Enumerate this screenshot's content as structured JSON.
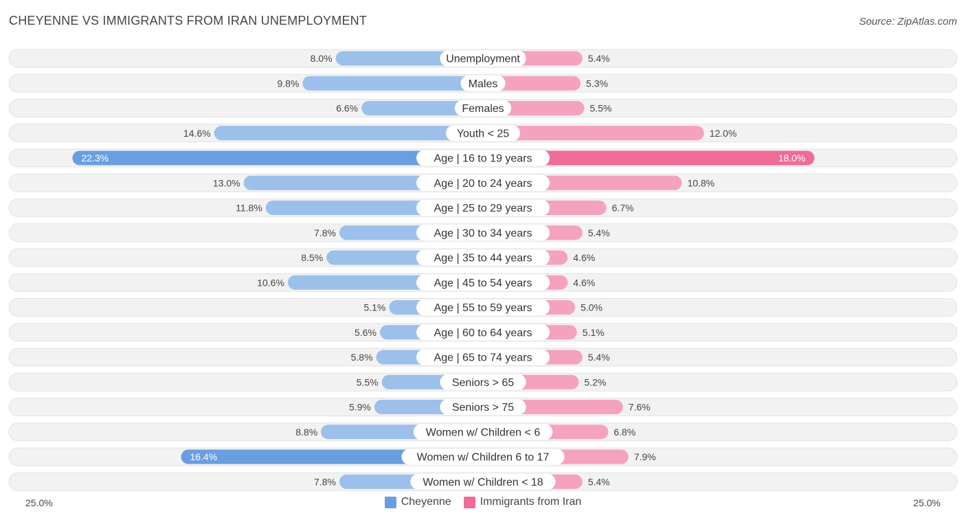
{
  "title": "CHEYENNE VS IMMIGRANTS FROM IRAN UNEMPLOYMENT",
  "source": "Source: ZipAtlas.com",
  "axis": {
    "left_label": "25.0%",
    "right_label": "25.0%"
  },
  "legend": [
    {
      "label": "Cheyenne",
      "color": "#6a9fdf"
    },
    {
      "label": "Immigrants from Iran",
      "color": "#f06c98"
    }
  ],
  "chart_data": {
    "type": "bar",
    "orientation": "horizontal-diverging",
    "xlim": [
      -25,
      25
    ],
    "unit": "%",
    "categories": [
      "Unemployment",
      "Males",
      "Females",
      "Youth < 25",
      "Age | 16 to 19 years",
      "Age | 20 to 24 years",
      "Age | 25 to 29 years",
      "Age | 30 to 34 years",
      "Age | 35 to 44 years",
      "Age | 45 to 54 years",
      "Age | 55 to 59 years",
      "Age | 60 to 64 years",
      "Age | 65 to 74 years",
      "Seniors > 65",
      "Seniors > 75",
      "Women w/ Children < 6",
      "Women w/ Children 6 to 17",
      "Women w/ Children < 18"
    ],
    "series": [
      {
        "name": "Cheyenne",
        "color": "#6a9fdf",
        "light_color": "#9cc0e9",
        "values": [
          8.0,
          9.8,
          6.6,
          14.6,
          22.3,
          13.0,
          11.8,
          7.8,
          8.5,
          10.6,
          5.1,
          5.6,
          5.8,
          5.5,
          5.9,
          8.8,
          16.4,
          7.8
        ]
      },
      {
        "name": "Immigrants from Iran",
        "color": "#f06c98",
        "light_color": "#f5a2bd",
        "values": [
          5.4,
          5.3,
          5.5,
          12.0,
          18.0,
          10.8,
          6.7,
          5.4,
          4.6,
          4.6,
          5.0,
          5.1,
          5.4,
          5.2,
          7.6,
          6.8,
          7.9,
          5.4
        ]
      }
    ]
  }
}
